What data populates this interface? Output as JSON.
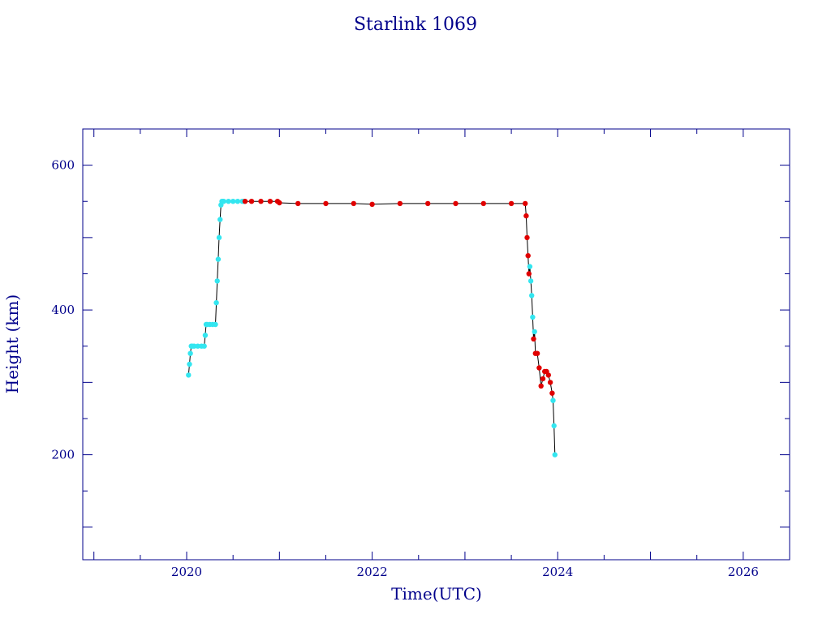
{
  "chart_data": {
    "type": "scatter",
    "title": "Starlink 1069",
    "xlabel": "Time(UTC)",
    "ylabel": "Height (km)",
    "xlim": [
      2018.88,
      2026.5
    ],
    "ylim": [
      55,
      650
    ],
    "x_ticks": [
      "2020",
      "2022",
      "2024",
      "2026"
    ],
    "y_ticks": [
      "200",
      "400",
      "600"
    ],
    "grid": false,
    "colors": {
      "axis": "#00008b",
      "cyan": "#33e6f0",
      "red": "#e00000",
      "trace": "#000000"
    },
    "series": [
      {
        "color": "cyan",
        "x": [
          2020.02,
          2020.03,
          2020.04,
          2020.05,
          2020.06,
          2020.08,
          2020.12,
          2020.16,
          2020.19,
          2020.2,
          2020.21,
          2020.22,
          2020.25,
          2020.28,
          2020.31,
          2020.32,
          2020.33,
          2020.34,
          2020.35,
          2020.36,
          2020.37,
          2020.38,
          2020.39,
          2020.4,
          2020.45,
          2020.5,
          2020.55,
          2020.6,
          2020.62,
          2023.7,
          2023.71,
          2023.72,
          2023.73,
          2023.75,
          2023.95,
          2023.96,
          2023.97
        ],
        "y": [
          310,
          325,
          340,
          350,
          350,
          350,
          350,
          350,
          350,
          365,
          380,
          380,
          380,
          380,
          380,
          410,
          440,
          470,
          500,
          525,
          545,
          550,
          550,
          550,
          550,
          550,
          550,
          550,
          550,
          460,
          440,
          420,
          390,
          370,
          275,
          240,
          200
        ]
      },
      {
        "color": "red",
        "x": [
          2020.63,
          2020.7,
          2020.8,
          2020.9,
          2020.98,
          2021.0,
          2021.2,
          2021.5,
          2021.8,
          2022.0,
          2022.3,
          2022.6,
          2022.9,
          2023.2,
          2023.5,
          2023.65,
          2023.66,
          2023.67,
          2023.68,
          2023.69,
          2023.74,
          2023.76,
          2023.78,
          2023.8,
          2023.82,
          2023.84,
          2023.86,
          2023.88,
          2023.9,
          2023.92,
          2023.94
        ],
        "y": [
          550,
          550,
          550,
          550,
          550,
          548,
          547,
          547,
          547,
          546,
          547,
          547,
          547,
          547,
          547,
          547,
          530,
          500,
          475,
          450,
          360,
          340,
          340,
          320,
          295,
          305,
          315,
          315,
          310,
          300,
          285
        ]
      }
    ]
  }
}
